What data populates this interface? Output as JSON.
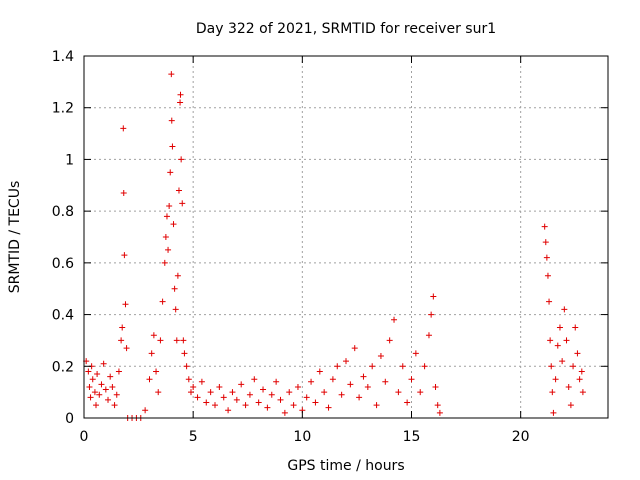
{
  "chart_data": {
    "type": "scatter",
    "title": "Day 322 of 2021, SRMTID for receiver sur1",
    "xlabel": "GPS time / hours",
    "ylabel": "SRMTID / TECUs",
    "xlim": [
      0,
      24
    ],
    "ylim": [
      0,
      1.4
    ],
    "xticks": [
      0,
      5,
      10,
      15,
      20
    ],
    "xtick_labels": [
      "0",
      "5",
      "10",
      "15",
      "20"
    ],
    "yticks": [
      0,
      0.2,
      0.4,
      0.6,
      0.8,
      1.0,
      1.2,
      1.4
    ],
    "ytick_labels": [
      "0",
      "0.2",
      "0.4",
      "0.6",
      "0.8",
      "1",
      "1.2",
      "1.4"
    ],
    "grid": true,
    "marker": "+",
    "color": "#e00000",
    "series": [
      {
        "name": "sur1",
        "points": [
          [
            0.1,
            0.22
          ],
          [
            0.2,
            0.18
          ],
          [
            0.25,
            0.12
          ],
          [
            0.3,
            0.08
          ],
          [
            0.35,
            0.2
          ],
          [
            0.4,
            0.15
          ],
          [
            0.5,
            0.1
          ],
          [
            0.55,
            0.05
          ],
          [
            0.6,
            0.17
          ],
          [
            0.7,
            0.09
          ],
          [
            0.8,
            0.13
          ],
          [
            0.9,
            0.21
          ],
          [
            1.0,
            0.11
          ],
          [
            1.1,
            0.07
          ],
          [
            1.2,
            0.16
          ],
          [
            1.3,
            0.12
          ],
          [
            1.4,
            0.05
          ],
          [
            1.5,
            0.09
          ],
          [
            1.6,
            0.18
          ],
          [
            1.7,
            0.3
          ],
          [
            1.75,
            0.35
          ],
          [
            1.8,
            1.12
          ],
          [
            1.82,
            0.87
          ],
          [
            1.85,
            0.63
          ],
          [
            1.9,
            0.44
          ],
          [
            1.95,
            0.27
          ],
          [
            2.0,
            0.0
          ],
          [
            2.2,
            0.0
          ],
          [
            2.4,
            0.0
          ],
          [
            2.6,
            0.0
          ],
          [
            2.8,
            0.03
          ],
          [
            3.0,
            0.15
          ],
          [
            3.1,
            0.25
          ],
          [
            3.2,
            0.32
          ],
          [
            3.3,
            0.18
          ],
          [
            3.4,
            0.1
          ],
          [
            3.5,
            0.3
          ],
          [
            3.6,
            0.45
          ],
          [
            3.7,
            0.6
          ],
          [
            3.75,
            0.7
          ],
          [
            3.8,
            0.78
          ],
          [
            3.85,
            0.65
          ],
          [
            3.9,
            0.82
          ],
          [
            3.95,
            0.95
          ],
          [
            4.0,
            1.33
          ],
          [
            4.02,
            1.15
          ],
          [
            4.05,
            1.05
          ],
          [
            4.1,
            0.75
          ],
          [
            4.15,
            0.5
          ],
          [
            4.2,
            0.42
          ],
          [
            4.25,
            0.3
          ],
          [
            4.3,
            0.55
          ],
          [
            4.35,
            0.88
          ],
          [
            4.4,
            1.22
          ],
          [
            4.42,
            1.25
          ],
          [
            4.45,
            1.0
          ],
          [
            4.5,
            0.83
          ],
          [
            4.55,
            0.3
          ],
          [
            4.6,
            0.25
          ],
          [
            4.7,
            0.2
          ],
          [
            4.8,
            0.15
          ],
          [
            4.9,
            0.1
          ],
          [
            5.0,
            0.12
          ],
          [
            5.2,
            0.08
          ],
          [
            5.4,
            0.14
          ],
          [
            5.6,
            0.06
          ],
          [
            5.8,
            0.1
          ],
          [
            6.0,
            0.05
          ],
          [
            6.2,
            0.12
          ],
          [
            6.4,
            0.08
          ],
          [
            6.6,
            0.03
          ],
          [
            6.8,
            0.1
          ],
          [
            7.0,
            0.07
          ],
          [
            7.2,
            0.13
          ],
          [
            7.4,
            0.05
          ],
          [
            7.6,
            0.09
          ],
          [
            7.8,
            0.15
          ],
          [
            8.0,
            0.06
          ],
          [
            8.2,
            0.11
          ],
          [
            8.4,
            0.04
          ],
          [
            8.6,
            0.09
          ],
          [
            8.8,
            0.14
          ],
          [
            9.0,
            0.07
          ],
          [
            9.2,
            0.02
          ],
          [
            9.4,
            0.1
          ],
          [
            9.6,
            0.05
          ],
          [
            9.8,
            0.12
          ],
          [
            10.0,
            0.03
          ],
          [
            10.2,
            0.08
          ],
          [
            10.4,
            0.14
          ],
          [
            10.6,
            0.06
          ],
          [
            10.8,
            0.18
          ],
          [
            11.0,
            0.1
          ],
          [
            11.2,
            0.04
          ],
          [
            11.4,
            0.15
          ],
          [
            11.6,
            0.2
          ],
          [
            11.8,
            0.09
          ],
          [
            12.0,
            0.22
          ],
          [
            12.2,
            0.13
          ],
          [
            12.4,
            0.27
          ],
          [
            12.6,
            0.08
          ],
          [
            12.8,
            0.16
          ],
          [
            13.0,
            0.12
          ],
          [
            13.2,
            0.2
          ],
          [
            13.4,
            0.05
          ],
          [
            13.6,
            0.24
          ],
          [
            13.8,
            0.14
          ],
          [
            14.0,
            0.3
          ],
          [
            14.2,
            0.38
          ],
          [
            14.4,
            0.1
          ],
          [
            14.6,
            0.2
          ],
          [
            14.8,
            0.06
          ],
          [
            15.0,
            0.15
          ],
          [
            15.2,
            0.25
          ],
          [
            15.4,
            0.1
          ],
          [
            15.6,
            0.2
          ],
          [
            15.8,
            0.32
          ],
          [
            15.9,
            0.4
          ],
          [
            16.0,
            0.47
          ],
          [
            16.1,
            0.12
          ],
          [
            16.2,
            0.05
          ],
          [
            16.3,
            0.02
          ],
          [
            21.1,
            0.74
          ],
          [
            21.15,
            0.68
          ],
          [
            21.2,
            0.62
          ],
          [
            21.25,
            0.55
          ],
          [
            21.3,
            0.45
          ],
          [
            21.35,
            0.3
          ],
          [
            21.4,
            0.2
          ],
          [
            21.45,
            0.1
          ],
          [
            21.5,
            0.02
          ],
          [
            21.6,
            0.15
          ],
          [
            21.7,
            0.28
          ],
          [
            21.8,
            0.35
          ],
          [
            21.9,
            0.22
          ],
          [
            22.0,
            0.42
          ],
          [
            22.1,
            0.3
          ],
          [
            22.2,
            0.12
          ],
          [
            22.3,
            0.05
          ],
          [
            22.4,
            0.2
          ],
          [
            22.5,
            0.35
          ],
          [
            22.6,
            0.25
          ],
          [
            22.7,
            0.15
          ],
          [
            22.8,
            0.18
          ],
          [
            22.85,
            0.1
          ]
        ]
      }
    ]
  }
}
